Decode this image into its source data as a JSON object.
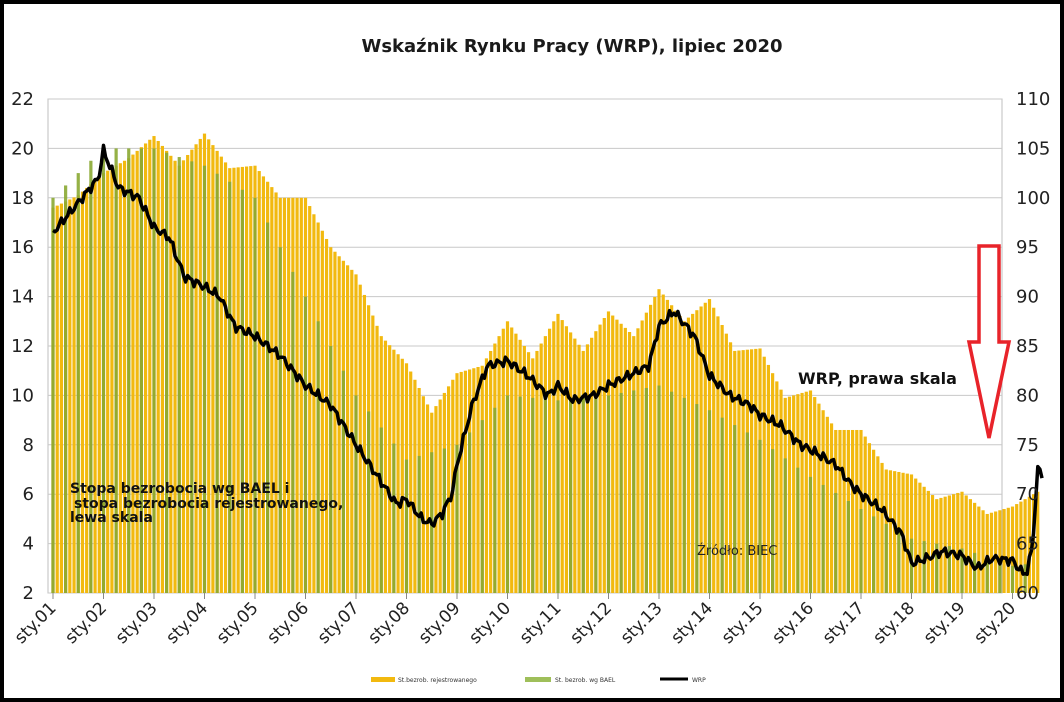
{
  "chart_data": {
    "type": "bar",
    "title": "Wskaźnik Rynku Pracy (WRP), lipiec 2020",
    "xlabel": "",
    "ylabel": "",
    "left_axis": {
      "min": 2,
      "max": 22,
      "step": 2,
      "ticks": [
        "2",
        "4",
        "6",
        "8",
        "10",
        "12",
        "14",
        "16",
        "18",
        "20",
        "22"
      ]
    },
    "right_axis": {
      "min": 60,
      "max": 110,
      "step": 5,
      "ticks": [
        "60",
        "65",
        "70",
        "75",
        "80",
        "85",
        "90",
        "95",
        "100",
        "105",
        "110"
      ]
    },
    "x_start_year": 2001,
    "x_ticks": [
      "sty.01",
      "sty.02",
      "sty.03",
      "sty.04",
      "sty.05",
      "sty.06",
      "sty.07",
      "sty.08",
      "sty.09",
      "sty.10",
      "sty.11",
      "sty.12",
      "sty.13",
      "sty.14",
      "sty.15",
      "sty.16",
      "sty.17",
      "sty.18",
      "sty.19",
      "sty.20"
    ],
    "grid": true,
    "legend_position": "bottom",
    "series": [
      {
        "name": "St.bezrob. rejestrowanego",
        "axis": "left",
        "color": "#f2b90f",
        "key_points": [
          [
            2001.0,
            17.6
          ],
          [
            2001.5,
            18.1
          ],
          [
            2002.0,
            19.0
          ],
          [
            2002.5,
            19.6
          ],
          [
            2003.0,
            20.5
          ],
          [
            2003.5,
            19.3
          ],
          [
            2004.0,
            20.6
          ],
          [
            2004.5,
            19.2
          ],
          [
            2005.0,
            19.3
          ],
          [
            2005.5,
            18.0
          ],
          [
            2006.0,
            18.0
          ],
          [
            2006.5,
            16.0
          ],
          [
            2007.0,
            14.9
          ],
          [
            2007.5,
            12.4
          ],
          [
            2008.0,
            11.3
          ],
          [
            2008.5,
            9.3
          ],
          [
            2009.0,
            10.9
          ],
          [
            2009.5,
            11.2
          ],
          [
            2010.0,
            13.0
          ],
          [
            2010.5,
            11.5
          ],
          [
            2011.0,
            13.3
          ],
          [
            2011.5,
            11.8
          ],
          [
            2012.0,
            13.4
          ],
          [
            2012.5,
            12.4
          ],
          [
            2013.0,
            14.3
          ],
          [
            2013.5,
            13.0
          ],
          [
            2014.0,
            13.9
          ],
          [
            2014.5,
            11.8
          ],
          [
            2015.0,
            11.9
          ],
          [
            2015.5,
            9.9
          ],
          [
            2016.0,
            10.2
          ],
          [
            2016.5,
            8.6
          ],
          [
            2017.0,
            8.6
          ],
          [
            2017.5,
            7.0
          ],
          [
            2018.0,
            6.8
          ],
          [
            2018.5,
            5.8
          ],
          [
            2019.0,
            6.1
          ],
          [
            2019.5,
            5.2
          ],
          [
            2020.0,
            5.5
          ],
          [
            2020.5,
            6.1
          ]
        ]
      },
      {
        "name": "St. bezrob. wg BAEL",
        "axis": "left",
        "color": "#8aa832",
        "key_points": [
          [
            2001.0,
            18.0
          ],
          [
            2002.0,
            20.0
          ],
          [
            2003.0,
            20.0
          ],
          [
            2004.0,
            19.3
          ],
          [
            2005.0,
            18.0
          ],
          [
            2006.0,
            14.0
          ],
          [
            2007.0,
            10.0
          ],
          [
            2008.0,
            7.4
          ],
          [
            2009.0,
            8.0
          ],
          [
            2010.0,
            10.0
          ],
          [
            2011.0,
            9.8
          ],
          [
            2012.0,
            10.0
          ],
          [
            2013.0,
            10.4
          ],
          [
            2014.0,
            9.4
          ],
          [
            2015.0,
            8.2
          ],
          [
            2016.0,
            6.7
          ],
          [
            2017.0,
            5.4
          ],
          [
            2018.0,
            4.2
          ],
          [
            2019.0,
            3.8
          ],
          [
            2020.0,
            3.1
          ],
          [
            2020.4,
            3.2
          ]
        ]
      },
      {
        "name": "WRP",
        "axis": "right",
        "color": "#000000",
        "key_points": [
          [
            2001.0,
            96.5
          ],
          [
            2001.5,
            99.5
          ],
          [
            2001.9,
            102.0
          ],
          [
            2002.0,
            104.8
          ],
          [
            2002.3,
            101.0
          ],
          [
            2002.7,
            100.0
          ],
          [
            2003.0,
            97.0
          ],
          [
            2003.3,
            96.0
          ],
          [
            2003.6,
            92.0
          ],
          [
            2004.0,
            91.0
          ],
          [
            2004.3,
            90.0
          ],
          [
            2004.6,
            87.0
          ],
          [
            2005.0,
            86.0
          ],
          [
            2005.5,
            84.0
          ],
          [
            2006.0,
            81.0
          ],
          [
            2006.5,
            79.0
          ],
          [
            2007.0,
            75.0
          ],
          [
            2007.4,
            72.0
          ],
          [
            2007.8,
            69.0
          ],
          [
            2008.0,
            69.5
          ],
          [
            2008.3,
            67.5
          ],
          [
            2008.5,
            67.0
          ],
          [
            2008.7,
            68.0
          ],
          [
            2008.9,
            70.0
          ],
          [
            2009.0,
            73.0
          ],
          [
            2009.3,
            79.0
          ],
          [
            2009.6,
            83.0
          ],
          [
            2010.0,
            83.5
          ],
          [
            2010.4,
            82.0
          ],
          [
            2010.8,
            80.0
          ],
          [
            2011.0,
            81.0
          ],
          [
            2011.3,
            79.5
          ],
          [
            2011.7,
            80.0
          ],
          [
            2012.0,
            81.0
          ],
          [
            2012.4,
            82.0
          ],
          [
            2012.8,
            83.0
          ],
          [
            2013.0,
            87.0
          ],
          [
            2013.3,
            88.5
          ],
          [
            2013.7,
            86.0
          ],
          [
            2014.0,
            82.0
          ],
          [
            2014.4,
            80.0
          ],
          [
            2014.8,
            79.0
          ],
          [
            2015.0,
            78.0
          ],
          [
            2015.4,
            77.0
          ],
          [
            2015.8,
            75.0
          ],
          [
            2016.0,
            74.5
          ],
          [
            2016.5,
            73.0
          ],
          [
            2016.8,
            71.0
          ],
          [
            2017.0,
            70.0
          ],
          [
            2017.4,
            68.5
          ],
          [
            2017.8,
            66.0
          ],
          [
            2018.0,
            63.0
          ],
          [
            2018.3,
            63.5
          ],
          [
            2018.6,
            64.2
          ],
          [
            2019.0,
            63.8
          ],
          [
            2019.3,
            62.5
          ],
          [
            2019.6,
            63.5
          ],
          [
            2020.0,
            63.3
          ],
          [
            2020.2,
            62.0
          ],
          [
            2020.3,
            62.2
          ],
          [
            2020.4,
            65.0
          ],
          [
            2020.5,
            72.5
          ],
          [
            2020.6,
            72.0
          ]
        ]
      }
    ],
    "annotations": {
      "wrp_label": "WRP, prawa skala",
      "left_label_line1": "Stopa bezrobocia wg BAEL i",
      "left_label_line2": "stopa bezrobocia rejestrowanego,",
      "left_label_line3": "lewa skala",
      "source": "Źródło: BIEC"
    },
    "arrow_color": "#e8232a"
  }
}
